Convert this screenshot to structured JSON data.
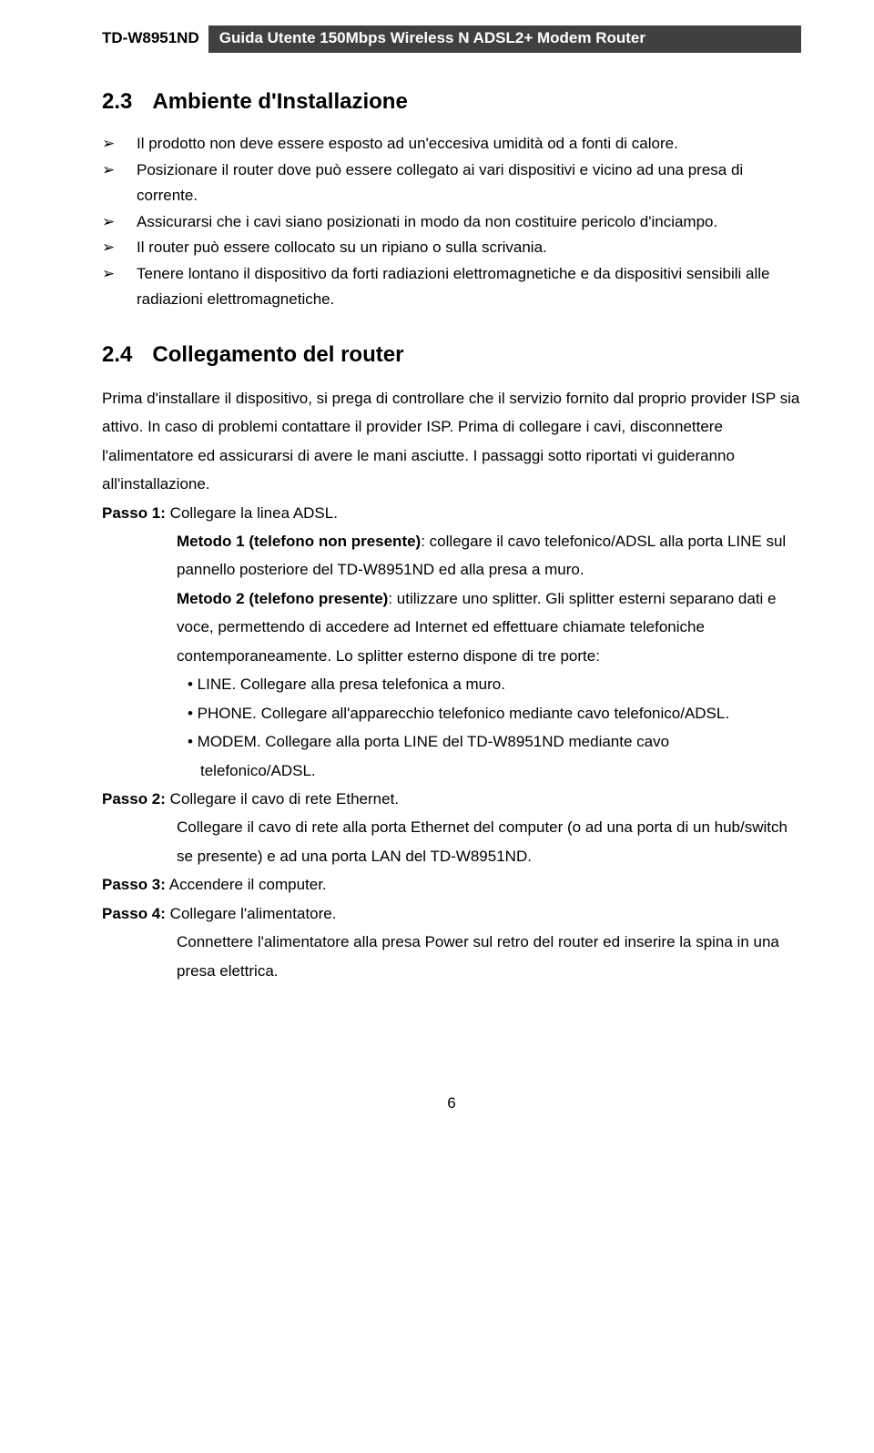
{
  "header": {
    "model": "TD-W8951ND",
    "title": "Guida Utente 150Mbps Wireless N ADSL2+ Modem Router"
  },
  "section23": {
    "number": "2.3",
    "title": "Ambiente d'Installazione",
    "bullets": [
      "Il prodotto non deve essere esposto ad un'eccesiva umidità od a fonti di calore.",
      "Posizionare il router dove può essere collegato ai vari dispositivi e vicino ad una presa di corrente.",
      "Assicurarsi che i cavi siano posizionati in modo da non costituire pericolo d'inciampo.",
      "Il router può essere collocato su un ripiano o sulla scrivania.",
      "Tenere lontano il dispositivo da forti radiazioni elettromagnetiche e da dispositivi sensibili alle radiazioni elettromagnetiche."
    ]
  },
  "section24": {
    "number": "2.4",
    "title": "Collegamento del router",
    "intro": "Prima d'installare il dispositivo, si prega di controllare che il servizio fornito dal proprio provider ISP sia attivo. In caso di problemi contattare il provider ISP. Prima di collegare i cavi, disconnettere l'alimentatore ed assicurarsi di avere le mani asciutte. I passaggi sotto riportati vi guideranno all'installazione.",
    "step1": {
      "label": "Passo 1:",
      "text": "Collegare la linea ADSL.",
      "m1label": "Metodo 1 (telefono non presente)",
      "m1text": ": collegare il cavo telefonico/ADSL alla porta LINE sul pannello posteriore del TD-W8951ND ed alla presa a muro.",
      "m2label": "Metodo 2 (telefono presente)",
      "m2text": ": utilizzare uno splitter. Gli splitter esterni separano dati e voce, permettendo di accedere ad Internet ed effettuare chiamate telefoniche contemporaneamente. Lo splitter esterno dispone di tre porte:",
      "sub1": "• LINE. Collegare alla presa telefonica a muro.",
      "sub2": "• PHONE. Collegare all'apparecchio telefonico mediante cavo telefonico/ADSL.",
      "sub3a": "• MODEM. Collegare alla porta LINE del TD-W8951ND mediante cavo",
      "sub3b": "telefonico/ADSL."
    },
    "step2": {
      "label": "Passo 2:",
      "text": "Collegare il cavo di rete Ethernet.",
      "cont": "Collegare il cavo di rete alla porta Ethernet del computer (o ad una porta di un hub/switch se presente) e ad una porta LAN del TD-W8951ND."
    },
    "step3": {
      "label": "Passo 3:",
      "text": "Accendere il computer."
    },
    "step4": {
      "label": "Passo 4:",
      "text": "Collegare l'alimentatore.",
      "cont": "Connettere l'alimentatore alla presa Power sul retro del router ed inserire la spina in una presa elettrica."
    }
  },
  "pagenum": "6"
}
